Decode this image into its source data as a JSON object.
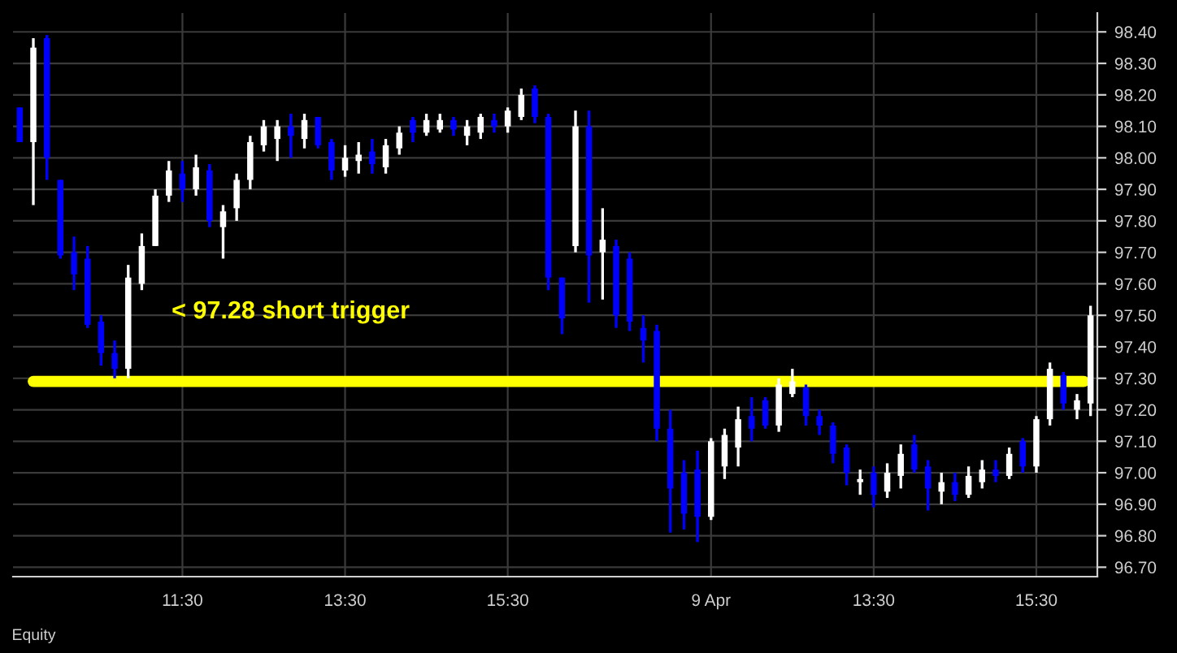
{
  "chart_data": {
    "type": "candlestick",
    "categories": [
      null,
      null,
      null,
      null,
      null,
      null,
      null,
      null,
      null,
      null,
      null,
      null,
      "11:30",
      null,
      null,
      null,
      null,
      null,
      null,
      null,
      null,
      null,
      null,
      null,
      "13:30",
      null,
      null,
      null,
      null,
      null,
      null,
      null,
      null,
      null,
      null,
      null,
      "15:30",
      null,
      null,
      null,
      null,
      null,
      null,
      null,
      null,
      null,
      null,
      null,
      null,
      null,
      null,
      "9 Apr",
      null,
      null,
      null,
      null,
      null,
      null,
      null,
      null,
      null,
      null,
      null,
      "13:30",
      null,
      null,
      null,
      null,
      null,
      null,
      null,
      null,
      null,
      null,
      null,
      "15:30",
      null,
      null,
      null,
      null
    ],
    "ohlc": [
      [
        98.16,
        98.16,
        98.05,
        98.05
      ],
      [
        98.05,
        98.38,
        97.85,
        98.35
      ],
      [
        98.38,
        98.39,
        97.93,
        98.0
      ],
      [
        97.93,
        97.93,
        97.68,
        97.69
      ],
      [
        97.7,
        97.75,
        97.58,
        97.63
      ],
      [
        97.68,
        97.72,
        97.46,
        97.47
      ],
      [
        97.48,
        97.5,
        97.34,
        97.38
      ],
      [
        97.38,
        97.42,
        97.3,
        97.33
      ],
      [
        97.33,
        97.66,
        97.3,
        97.62
      ],
      [
        97.6,
        97.76,
        97.58,
        97.72
      ],
      [
        97.72,
        97.9,
        97.72,
        97.88
      ],
      [
        97.88,
        97.99,
        97.86,
        97.96
      ],
      [
        97.95,
        97.99,
        97.86,
        97.9
      ],
      [
        97.9,
        98.01,
        97.88,
        97.97
      ],
      [
        97.96,
        97.98,
        97.78,
        97.8
      ],
      [
        97.78,
        97.85,
        97.68,
        97.83
      ],
      [
        97.84,
        97.95,
        97.8,
        97.93
      ],
      [
        97.93,
        98.07,
        97.9,
        98.05
      ],
      [
        98.04,
        98.12,
        98.02,
        98.1
      ],
      [
        98.06,
        98.12,
        97.99,
        98.1
      ],
      [
        98.1,
        98.14,
        98.0,
        98.07
      ],
      [
        98.06,
        98.14,
        98.03,
        98.12
      ],
      [
        98.13,
        98.13,
        98.03,
        98.04
      ],
      [
        98.05,
        98.06,
        97.93,
        97.96
      ],
      [
        97.96,
        98.04,
        97.94,
        98.0
      ],
      [
        97.99,
        98.05,
        97.95,
        98.01
      ],
      [
        98.02,
        98.06,
        97.95,
        97.98
      ],
      [
        97.97,
        98.06,
        97.95,
        98.04
      ],
      [
        98.03,
        98.1,
        98.01,
        98.08
      ],
      [
        98.12,
        98.13,
        98.05,
        98.08
      ],
      [
        98.08,
        98.14,
        98.07,
        98.12
      ],
      [
        98.09,
        98.14,
        98.08,
        98.12
      ],
      [
        98.12,
        98.13,
        98.07,
        98.09
      ],
      [
        98.07,
        98.12,
        98.04,
        98.1
      ],
      [
        98.08,
        98.14,
        98.06,
        98.13
      ],
      [
        98.12,
        98.14,
        98.08,
        98.1
      ],
      [
        98.1,
        98.16,
        98.08,
        98.15
      ],
      [
        98.13,
        98.22,
        98.12,
        98.2
      ],
      [
        98.22,
        98.23,
        98.11,
        98.13
      ],
      [
        98.13,
        98.14,
        97.58,
        97.62
      ],
      [
        97.62,
        97.62,
        97.44,
        97.49
      ],
      [
        97.72,
        98.15,
        97.7,
        98.1
      ],
      [
        98.1,
        98.15,
        97.54,
        97.69
      ],
      [
        97.7,
        97.84,
        97.55,
        97.74
      ],
      [
        97.72,
        97.74,
        97.46,
        97.5
      ],
      [
        97.68,
        97.7,
        97.45,
        97.48
      ],
      [
        97.46,
        97.5,
        97.35,
        97.42
      ],
      [
        97.45,
        97.47,
        97.1,
        97.14
      ],
      [
        97.14,
        97.2,
        96.81,
        96.95
      ],
      [
        97.0,
        97.04,
        96.82,
        96.87
      ],
      [
        97.01,
        97.07,
        96.78,
        96.86
      ],
      [
        96.86,
        97.11,
        96.85,
        97.1
      ],
      [
        97.02,
        97.14,
        96.98,
        97.12
      ],
      [
        97.08,
        97.21,
        97.02,
        97.17
      ],
      [
        97.18,
        97.24,
        97.1,
        97.14
      ],
      [
        97.23,
        97.24,
        97.14,
        97.15
      ],
      [
        97.15,
        97.3,
        97.13,
        97.28
      ],
      [
        97.25,
        97.33,
        97.24,
        97.29
      ],
      [
        97.27,
        97.28,
        97.15,
        97.18
      ],
      [
        97.18,
        97.2,
        97.12,
        97.15
      ],
      [
        97.15,
        97.16,
        97.03,
        97.06
      ],
      [
        97.08,
        97.09,
        96.96,
        97.0
      ],
      [
        96.97,
        97.01,
        96.93,
        96.98
      ],
      [
        97.0,
        97.02,
        96.89,
        96.93
      ],
      [
        96.94,
        97.03,
        96.92,
        97.0
      ],
      [
        96.99,
        97.09,
        96.95,
        97.06
      ],
      [
        97.09,
        97.12,
        97.0,
        97.01
      ],
      [
        97.02,
        97.04,
        96.88,
        96.95
      ],
      [
        96.94,
        97.0,
        96.9,
        96.97
      ],
      [
        96.97,
        97.0,
        96.91,
        96.93
      ],
      [
        96.93,
        97.02,
        96.92,
        96.99
      ],
      [
        96.97,
        97.04,
        96.95,
        97.01
      ],
      [
        97.01,
        97.04,
        96.97,
        96.99
      ],
      [
        96.99,
        97.08,
        96.98,
        97.06
      ],
      [
        97.1,
        97.11,
        97.0,
        97.02
      ],
      [
        97.02,
        97.18,
        97.0,
        97.17
      ],
      [
        97.17,
        97.35,
        97.15,
        97.33
      ],
      [
        97.31,
        97.32,
        97.2,
        97.22
      ],
      [
        97.2,
        97.25,
        97.17,
        97.23
      ],
      [
        97.22,
        97.53,
        97.18,
        97.5
      ]
    ],
    "colors": [
      "#0000ff",
      "#ffffff",
      "#0000ff",
      "#0000ff",
      "#0000ff",
      "#0000ff",
      "#0000ff",
      "#0000ff",
      "#ffffff",
      "#ffffff",
      "#ffffff",
      "#ffffff",
      "#0000ff",
      "#ffffff",
      "#0000ff",
      "#ffffff",
      "#ffffff",
      "#ffffff",
      "#ffffff",
      "#ffffff",
      "#0000ff",
      "#ffffff",
      "#0000ff",
      "#0000ff",
      "#ffffff",
      "#ffffff",
      "#0000ff",
      "#ffffff",
      "#ffffff",
      "#0000ff",
      "#ffffff",
      "#ffffff",
      "#0000ff",
      "#ffffff",
      "#ffffff",
      "#0000ff",
      "#ffffff",
      "#ffffff",
      "#0000ff",
      "#0000ff",
      "#0000ff",
      "#ffffff",
      "#0000ff",
      "#ffffff",
      "#0000ff",
      "#0000ff",
      "#0000ff",
      "#0000ff",
      "#0000ff",
      "#0000ff",
      "#0000ff",
      "#ffffff",
      "#ffffff",
      "#ffffff",
      "#0000ff",
      "#0000ff",
      "#ffffff",
      "#ffffff",
      "#0000ff",
      "#0000ff",
      "#0000ff",
      "#0000ff",
      "#ffffff",
      "#0000ff",
      "#ffffff",
      "#ffffff",
      "#0000ff",
      "#0000ff",
      "#ffffff",
      "#0000ff",
      "#ffffff",
      "#ffffff",
      "#0000ff",
      "#ffffff",
      "#0000ff",
      "#ffffff",
      "#ffffff",
      "#0000ff",
      "#ffffff",
      "#ffffff"
    ],
    "ylim": [
      96.67,
      98.46
    ],
    "yticks": [
      {
        "value": 96.7,
        "label": "96.70"
      },
      {
        "value": 96.8,
        "label": "96.80"
      },
      {
        "value": 96.9,
        "label": "96.90"
      },
      {
        "value": 97.0,
        "label": "97.00"
      },
      {
        "value": 97.1,
        "label": "97.10"
      },
      {
        "value": 97.2,
        "label": "97.20"
      },
      {
        "value": 97.3,
        "label": "97.30"
      },
      {
        "value": 97.4,
        "label": "97.40"
      },
      {
        "value": 97.5,
        "label": "97.50"
      },
      {
        "value": 97.6,
        "label": "97.60"
      },
      {
        "value": 97.7,
        "label": "97.70"
      },
      {
        "value": 97.8,
        "label": "97.80"
      },
      {
        "value": 97.9,
        "label": "97.90"
      },
      {
        "value": 98.0,
        "label": "98.00"
      },
      {
        "value": 98.1,
        "label": "98.10"
      },
      {
        "value": 98.2,
        "label": "98.20"
      },
      {
        "value": 98.3,
        "label": "98.30"
      },
      {
        "value": 98.4,
        "label": "98.40"
      }
    ],
    "ref_lines": [
      {
        "axis": "y",
        "value": 97.29,
        "label": "< 97.28 short trigger",
        "color": "#ffff00"
      }
    ],
    "annotations": [
      "Equity"
    ],
    "grid": true,
    "legend": false
  }
}
